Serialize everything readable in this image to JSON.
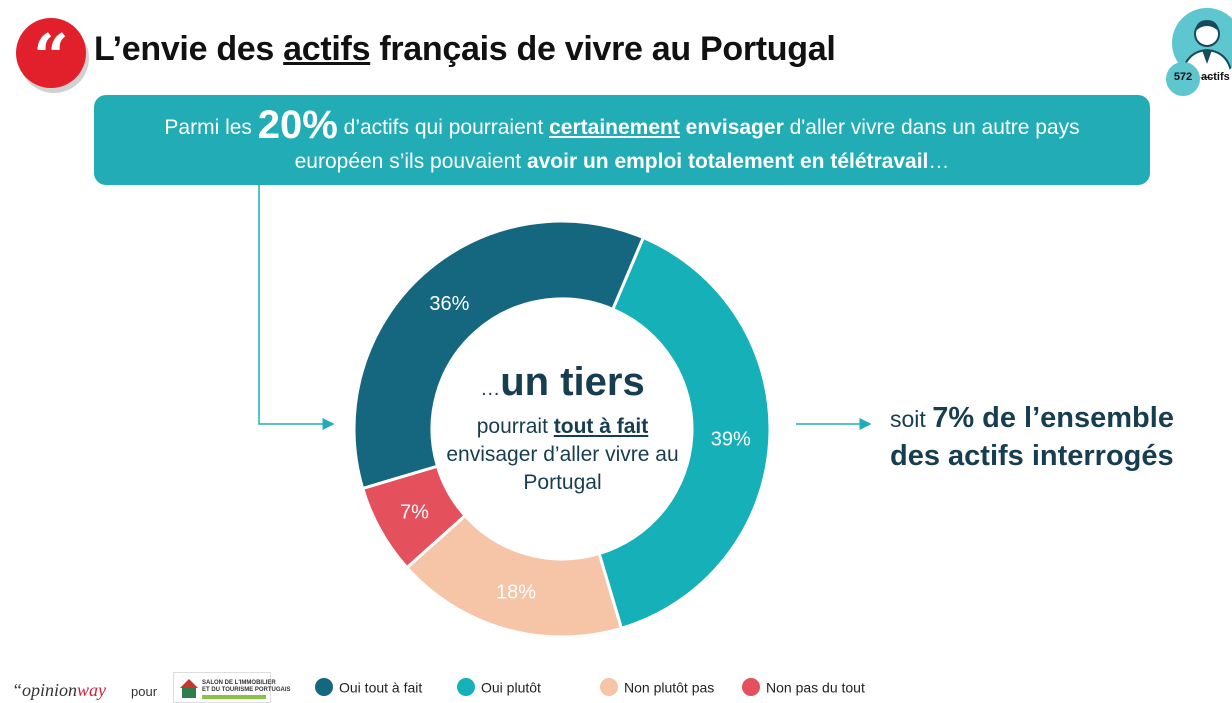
{
  "header": {
    "title_before": "L’envie des ",
    "title_underlined": "actifs",
    "title_after": " français de vivre au Portugal",
    "sample_count": "572",
    "sample_label": "actifs"
  },
  "banner": {
    "t1": "Parmi les ",
    "t2": "20%",
    "t3": " d’actifs qui pourraient ",
    "t4": "certainement",
    "t5": " envisager",
    "t6": " d'aller vivre dans un autre pays",
    "t7": "européen s’ils pouvaient ",
    "t8": "avoir un emploi totalement en télétravail",
    "t9": "…"
  },
  "center": {
    "dots": "…",
    "headline": "un tiers",
    "l2a": "pourrait ",
    "l2b": "tout à fait",
    "l3": "envisager d’aller vivre au",
    "l4": "Portugal"
  },
  "side": {
    "s1": "soit ",
    "s2": "7% de l’ensemble",
    "s3": "des actifs interrogés"
  },
  "footer": {
    "brand_left": "“opinion",
    "brand_right": "way",
    "pour": "pour",
    "sponsor_line1": "SALON DE L'IMMOBILIER",
    "sponsor_line2": "ET DU TOURISME PORTUGAIS"
  },
  "chart_data": {
    "type": "pie",
    "donut": true,
    "title": "",
    "categories": [
      "Oui tout à fait",
      "Oui plutôt",
      "Non plutôt pas",
      "Non pas du tout"
    ],
    "values": [
      36,
      39,
      18,
      7
    ],
    "labels": [
      "36%",
      "39%",
      "18%",
      "7%"
    ],
    "colors": [
      "#14677f",
      "#16b0b9",
      "#f6c4a6",
      "#e4505c"
    ],
    "legend_position": "bottom"
  }
}
